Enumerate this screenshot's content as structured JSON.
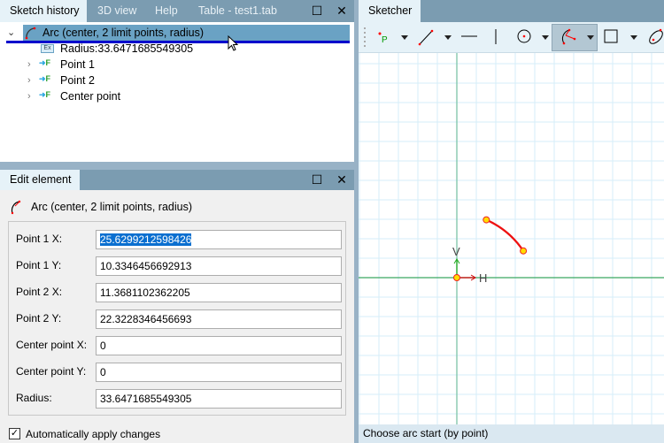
{
  "left_tabs": {
    "items": [
      "Sketch history",
      "3D view",
      "Help",
      "Table - test1.tab"
    ],
    "active": "Sketch history"
  },
  "tree": {
    "root": "Arc (center, 2 limit points, radius)",
    "children": [
      {
        "label": "Radius:33.6471685549305",
        "icon": "expression-icon"
      },
      {
        "label": "Point 1",
        "icon": "point-feature-icon"
      },
      {
        "label": "Point 2",
        "icon": "point-feature-icon"
      },
      {
        "label": "Center point",
        "icon": "point-feature-icon"
      }
    ]
  },
  "edit": {
    "tab": "Edit element",
    "title": "Arc (center, 2 limit points, radius)",
    "fields": [
      {
        "label": "Point 1 X:",
        "value": "25.6299212598426"
      },
      {
        "label": "Point 1 Y:",
        "value": "10.3346456692913"
      },
      {
        "label": "Point 2 X:",
        "value": "11.3681102362205"
      },
      {
        "label": "Point 2 Y:",
        "value": "22.3228346456693"
      },
      {
        "label": "Center point X:",
        "value": "0"
      },
      {
        "label": "Center point Y:",
        "value": "0"
      },
      {
        "label": "Radius:",
        "value": "33.6471685549305"
      }
    ],
    "auto_apply_label": "Automatically apply changes",
    "auto_apply_checked": true
  },
  "sketcher": {
    "tab": "Sketcher",
    "tools": [
      "point-tool",
      "line-tool",
      "horizontal-line-tool",
      "vertical-line-tool",
      "circle-tool",
      "arc-tool",
      "rectangle-tool",
      "ellipse-tool"
    ],
    "active_tool": "arc-tool",
    "axis_h": "H",
    "axis_v": "V",
    "status": "Choose arc start (by point)"
  },
  "colors": {
    "accent": "#0a6fd0",
    "arc": "#ee1111",
    "tabbar": "#7b9cb1"
  }
}
